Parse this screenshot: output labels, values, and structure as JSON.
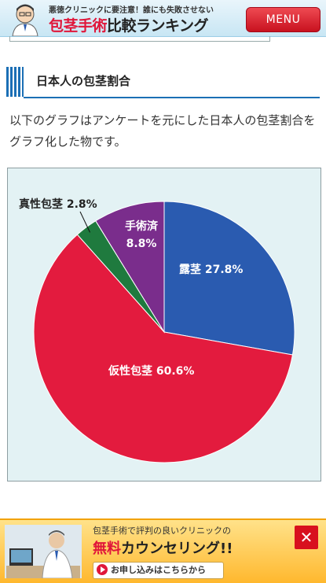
{
  "header": {
    "tagline": "悪徳クリニックに要注意！誰にも失敗させない",
    "logo_red": "包茎手術",
    "logo_black": "比較ランキング",
    "menu_label": "MENU"
  },
  "section": {
    "title": "日本人の包茎割合"
  },
  "intro": {
    "text": "以下のグラフはアンケートを元にした日本人の包茎割合をグラフ化した物です。"
  },
  "chart_data": {
    "type": "pie",
    "title": "",
    "slices": [
      {
        "label": "露茎",
        "value": 27.8,
        "value_label": "27.8%",
        "color": "#2a5bb0"
      },
      {
        "label": "仮性包茎",
        "value": 60.6,
        "value_label": "60.6%",
        "color": "#e31b3e"
      },
      {
        "label": "真性包茎",
        "value": 2.8,
        "value_label": "2.8%",
        "color": "#1f7a3e"
      },
      {
        "label": "手術済",
        "value": 8.8,
        "value_label": "8.8%",
        "color": "#7a2d8c"
      }
    ]
  },
  "banner": {
    "line1": "包茎手術で評判の良いクリニックの",
    "free": "無料",
    "rest": "カウンセリング!!",
    "apply_label": "お申し込みはこちらから",
    "close_label": "✕"
  },
  "colors": {
    "accent_blue": "#1b6fb5",
    "menu_red": "#d3202c",
    "chart_bg": "#e3f2f4"
  }
}
